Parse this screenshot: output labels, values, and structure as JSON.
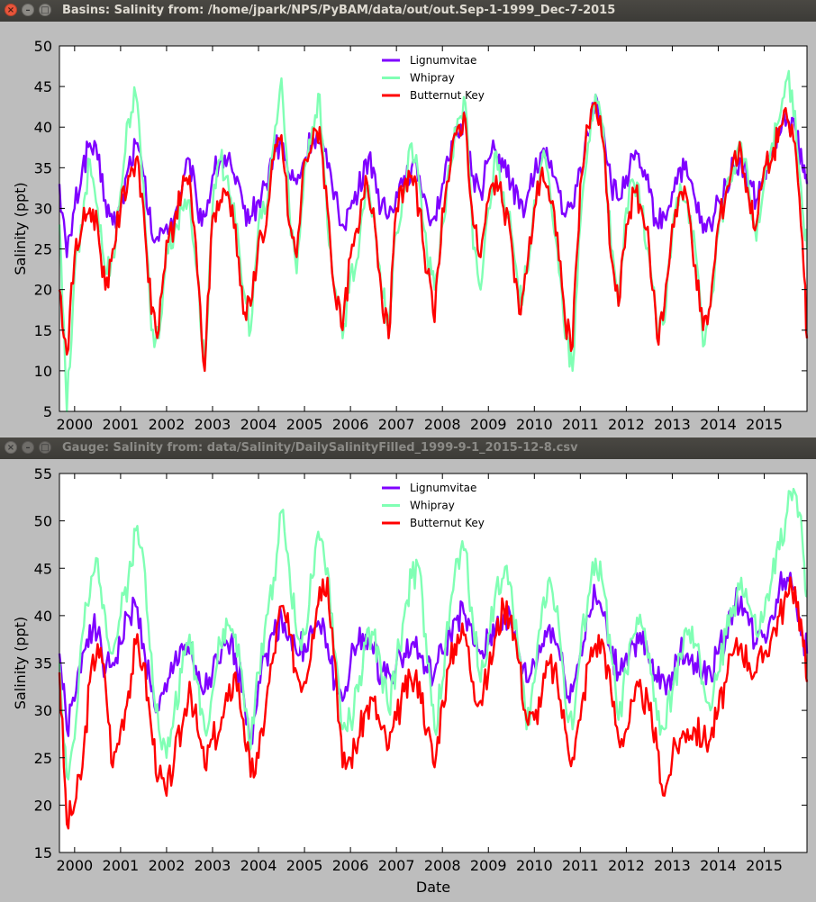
{
  "windows": [
    {
      "title": "Basins: Salinity from: /home/jpark/NPS/PyBAM/data/out/out.Sep-1-1999_Dec-7-2015"
    },
    {
      "title": "Gauge: Salinity from: data/Salinity/DailySalinityFilled_1999-9-1_2015-12-8.csv"
    }
  ],
  "window_buttons": {
    "close": "×",
    "minimize": "–",
    "maximize": "□"
  },
  "chart_data": [
    {
      "type": "line",
      "title": "",
      "xlabel": "",
      "ylabel": "Salinity (ppt)",
      "xlim": [
        1999.67,
        2015.93
      ],
      "ylim": [
        5,
        50
      ],
      "yticks": [
        5,
        10,
        15,
        20,
        25,
        30,
        35,
        40,
        45,
        50
      ],
      "xticks": [
        2000,
        2001,
        2002,
        2003,
        2004,
        2005,
        2006,
        2007,
        2008,
        2009,
        2010,
        2011,
        2012,
        2013,
        2014,
        2015
      ],
      "grid": false,
      "legend_position": "top-center",
      "x": [
        1999.67,
        1999.83,
        2000.0,
        2000.17,
        2000.33,
        2000.5,
        2000.67,
        2000.83,
        2001.0,
        2001.17,
        2001.33,
        2001.5,
        2001.67,
        2001.83,
        2002.0,
        2002.17,
        2002.33,
        2002.5,
        2002.67,
        2002.83,
        2003.0,
        2003.17,
        2003.33,
        2003.5,
        2003.67,
        2003.83,
        2004.0,
        2004.17,
        2004.33,
        2004.5,
        2004.67,
        2004.83,
        2005.0,
        2005.17,
        2005.33,
        2005.5,
        2005.67,
        2005.83,
        2006.0,
        2006.17,
        2006.33,
        2006.5,
        2006.67,
        2006.83,
        2007.0,
        2007.17,
        2007.33,
        2007.5,
        2007.67,
        2007.83,
        2008.0,
        2008.17,
        2008.33,
        2008.5,
        2008.67,
        2008.83,
        2009.0,
        2009.17,
        2009.33,
        2009.5,
        2009.67,
        2009.83,
        2010.0,
        2010.17,
        2010.33,
        2010.5,
        2010.67,
        2010.83,
        2011.0,
        2011.17,
        2011.33,
        2011.5,
        2011.67,
        2011.83,
        2012.0,
        2012.17,
        2012.33,
        2012.5,
        2012.67,
        2012.83,
        2013.0,
        2013.17,
        2013.33,
        2013.5,
        2013.67,
        2013.83,
        2014.0,
        2014.17,
        2014.33,
        2014.5,
        2014.67,
        2014.83,
        2015.0,
        2015.17,
        2015.33,
        2015.5,
        2015.67,
        2015.83,
        2015.93
      ],
      "series": [
        {
          "name": "Lignumvitae",
          "color": "#7f00ff",
          "values": [
            33,
            24,
            30,
            35,
            38,
            36,
            31,
            28,
            30,
            35,
            38,
            34,
            27,
            26,
            28,
            29,
            32,
            36,
            30,
            29,
            34,
            36,
            36,
            33,
            30,
            29,
            31,
            33,
            37,
            38,
            34,
            33,
            36,
            39,
            38,
            35,
            32,
            28,
            30,
            32,
            36,
            35,
            30,
            29,
            32,
            34,
            35,
            34,
            30,
            29,
            33,
            36,
            39,
            41,
            34,
            32,
            36,
            37,
            35,
            33,
            30,
            31,
            34,
            37,
            35,
            33,
            29,
            30,
            35,
            39,
            44,
            40,
            33,
            31,
            34,
            36,
            35,
            32,
            28,
            29,
            32,
            35,
            34,
            31,
            27,
            28,
            31,
            33,
            35,
            36,
            33,
            31,
            34,
            37,
            39,
            41,
            40,
            35,
            33
          ]
        },
        {
          "name": "Whipray",
          "color": "#80ffb4",
          "values": [
            28,
            5,
            22,
            28,
            36,
            30,
            22,
            24,
            32,
            41,
            44,
            33,
            15,
            14,
            25,
            27,
            30,
            31,
            22,
            10,
            30,
            36,
            34,
            28,
            20,
            15,
            28,
            30,
            38,
            46,
            30,
            22,
            35,
            40,
            44,
            28,
            20,
            14,
            22,
            24,
            32,
            30,
            20,
            16,
            27,
            32,
            38,
            33,
            24,
            20,
            28,
            35,
            41,
            43,
            25,
            20,
            30,
            37,
            32,
            27,
            18,
            22,
            31,
            36,
            33,
            25,
            14,
            10,
            28,
            38,
            44,
            40,
            25,
            18,
            30,
            33,
            30,
            24,
            15,
            16,
            27,
            33,
            31,
            25,
            13,
            18,
            27,
            32,
            35,
            38,
            32,
            26,
            33,
            38,
            41,
            46,
            42,
            30,
            25
          ]
        },
        {
          "name": "Butternut Key",
          "color": "#ff0000",
          "values": [
            20,
            12,
            24,
            28,
            30,
            28,
            20,
            25,
            30,
            34,
            36,
            30,
            17,
            15,
            26,
            28,
            32,
            34,
            22,
            10,
            29,
            31,
            32,
            28,
            17,
            18,
            26,
            28,
            36,
            39,
            28,
            24,
            36,
            38,
            40,
            30,
            19,
            15,
            24,
            27,
            34,
            30,
            20,
            14,
            30,
            33,
            34,
            30,
            22,
            16,
            30,
            35,
            40,
            41,
            28,
            24,
            31,
            34,
            30,
            26,
            17,
            22,
            30,
            35,
            31,
            27,
            16,
            13,
            33,
            40,
            43,
            38,
            24,
            18,
            28,
            32,
            30,
            25,
            14,
            18,
            28,
            32,
            31,
            23,
            15,
            18,
            28,
            32,
            36,
            37,
            31,
            28,
            35,
            36,
            40,
            41,
            38,
            26,
            14
          ]
        }
      ]
    },
    {
      "type": "line",
      "title": "",
      "xlabel": "Date",
      "ylabel": "Salinity (ppt)",
      "xlim": [
        1999.67,
        2015.93
      ],
      "ylim": [
        15,
        55
      ],
      "yticks": [
        15,
        20,
        25,
        30,
        35,
        40,
        45,
        50,
        55
      ],
      "xticks": [
        2000,
        2001,
        2002,
        2003,
        2004,
        2005,
        2006,
        2007,
        2008,
        2009,
        2010,
        2011,
        2012,
        2013,
        2014,
        2015
      ],
      "grid": false,
      "legend_position": "top-center",
      "x": [
        1999.67,
        1999.83,
        2000.0,
        2000.17,
        2000.33,
        2000.5,
        2000.67,
        2000.83,
        2001.0,
        2001.17,
        2001.33,
        2001.5,
        2001.67,
        2001.83,
        2002.0,
        2002.17,
        2002.33,
        2002.5,
        2002.67,
        2002.83,
        2003.0,
        2003.17,
        2003.33,
        2003.5,
        2003.67,
        2003.83,
        2004.0,
        2004.17,
        2004.33,
        2004.5,
        2004.67,
        2004.83,
        2005.0,
        2005.17,
        2005.33,
        2005.5,
        2005.67,
        2005.83,
        2006.0,
        2006.17,
        2006.33,
        2006.5,
        2006.67,
        2006.83,
        2007.0,
        2007.17,
        2007.33,
        2007.5,
        2007.67,
        2007.83,
        2008.0,
        2008.17,
        2008.33,
        2008.5,
        2008.67,
        2008.83,
        2009.0,
        2009.17,
        2009.33,
        2009.5,
        2009.67,
        2009.83,
        2010.0,
        2010.17,
        2010.33,
        2010.5,
        2010.67,
        2010.83,
        2011.0,
        2011.17,
        2011.33,
        2011.5,
        2011.67,
        2011.83,
        2012.0,
        2012.17,
        2012.33,
        2012.5,
        2012.67,
        2012.83,
        2013.0,
        2013.17,
        2013.33,
        2013.5,
        2013.67,
        2013.83,
        2014.0,
        2014.17,
        2014.33,
        2014.5,
        2014.67,
        2014.83,
        2015.0,
        2015.17,
        2015.33,
        2015.5,
        2015.67,
        2015.83,
        2015.93
      ],
      "series": [
        {
          "name": "Lignumvitae",
          "color": "#7f00ff",
          "values": [
            36,
            28,
            31,
            36,
            39,
            38,
            34,
            35,
            37,
            40,
            41,
            37,
            32,
            30,
            32,
            35,
            37,
            36,
            33,
            32,
            34,
            35,
            37,
            36,
            32,
            27,
            33,
            36,
            38,
            40,
            38,
            36,
            37,
            38,
            39,
            37,
            33,
            31,
            35,
            37,
            38,
            36,
            34,
            34,
            35,
            36,
            37,
            36,
            34,
            34,
            36,
            38,
            40,
            40,
            37,
            36,
            37,
            39,
            40,
            39,
            36,
            33,
            35,
            37,
            39,
            37,
            33,
            32,
            36,
            40,
            42,
            40,
            36,
            34,
            36,
            37,
            37,
            35,
            33,
            33,
            34,
            36,
            36,
            35,
            34,
            34,
            36,
            38,
            41,
            42,
            39,
            37,
            38,
            40,
            43,
            44,
            43,
            38,
            36
          ]
        },
        {
          "name": "Whipray",
          "color": "#80ffb4",
          "values": [
            35,
            23,
            27,
            38,
            42,
            46,
            40,
            36,
            40,
            44,
            49,
            46,
            36,
            28,
            25,
            30,
            34,
            38,
            33,
            28,
            32,
            37,
            39,
            38,
            32,
            26,
            34,
            40,
            44,
            51,
            45,
            38,
            38,
            44,
            48,
            45,
            36,
            28,
            29,
            32,
            37,
            38,
            34,
            30,
            35,
            40,
            44,
            45,
            35,
            28,
            33,
            41,
            46,
            47,
            39,
            33,
            38,
            43,
            44,
            43,
            36,
            28,
            33,
            41,
            44,
            41,
            31,
            28,
            36,
            42,
            46,
            43,
            36,
            29,
            34,
            38,
            39,
            36,
            29,
            28,
            32,
            36,
            38,
            37,
            33,
            30,
            34,
            38,
            41,
            44,
            41,
            38,
            40,
            44,
            47,
            51,
            53,
            48,
            42
          ]
        },
        {
          "name": "Butternut Key",
          "color": "#ff0000",
          "values": [
            34,
            18,
            20,
            24,
            33,
            37,
            33,
            24,
            28,
            32,
            37,
            35,
            28,
            23,
            21,
            25,
            28,
            33,
            28,
            24,
            27,
            28,
            31,
            34,
            29,
            23,
            25,
            31,
            36,
            41,
            38,
            34,
            33,
            38,
            43,
            44,
            35,
            24,
            25,
            27,
            30,
            31,
            28,
            26,
            29,
            32,
            33,
            33,
            28,
            24,
            31,
            35,
            38,
            38,
            33,
            31,
            34,
            38,
            41,
            40,
            35,
            29,
            29,
            32,
            35,
            33,
            28,
            25,
            29,
            35,
            37,
            37,
            32,
            27,
            28,
            31,
            32,
            30,
            26,
            21,
            25,
            27,
            28,
            28,
            27,
            27,
            30,
            33,
            36,
            37,
            35,
            34,
            36,
            38,
            40,
            42,
            43,
            38,
            33
          ]
        }
      ]
    }
  ]
}
